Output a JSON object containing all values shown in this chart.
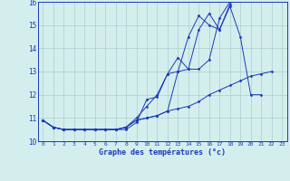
{
  "xlabel": "Graphe des températures (°c)",
  "x_ticks": [
    0,
    1,
    2,
    3,
    4,
    5,
    6,
    7,
    8,
    9,
    10,
    11,
    12,
    13,
    14,
    15,
    16,
    17,
    18,
    19,
    20,
    21,
    22,
    23
  ],
  "ylim": [
    10,
    16
  ],
  "xlim": [
    -0.5,
    23.5
  ],
  "y_ticks": [
    10,
    11,
    12,
    13,
    14,
    15,
    16
  ],
  "background_color": "#d4eeee",
  "grid_color": "#aacece",
  "line_color": "#1a3ab8",
  "series": {
    "line1": [
      10.9,
      10.6,
      10.5,
      10.5,
      10.5,
      10.5,
      10.5,
      10.5,
      10.5,
      10.8,
      11.8,
      11.9,
      12.9,
      13.0,
      13.1,
      14.8,
      15.5,
      14.8,
      15.8,
      14.5,
      12.0,
      12.0,
      null,
      null
    ],
    "line2": [
      10.9,
      10.6,
      10.5,
      10.5,
      10.5,
      10.5,
      10.5,
      10.5,
      10.6,
      10.9,
      11.0,
      11.1,
      11.3,
      11.4,
      11.5,
      11.7,
      12.0,
      12.2,
      12.4,
      12.6,
      12.8,
      12.9,
      13.0,
      null
    ],
    "line3": [
      10.9,
      10.6,
      10.5,
      10.5,
      10.5,
      10.5,
      10.5,
      10.5,
      10.6,
      11.0,
      11.5,
      12.0,
      12.9,
      13.6,
      13.1,
      13.1,
      13.5,
      15.3,
      16.0,
      null,
      null,
      null,
      null,
      null
    ],
    "line4": [
      10.9,
      10.6,
      10.5,
      10.5,
      10.5,
      10.5,
      10.5,
      10.5,
      10.6,
      10.9,
      11.0,
      11.1,
      11.3,
      13.0,
      14.5,
      15.4,
      15.0,
      14.8,
      15.9,
      null,
      null,
      null,
      null,
      null
    ]
  }
}
